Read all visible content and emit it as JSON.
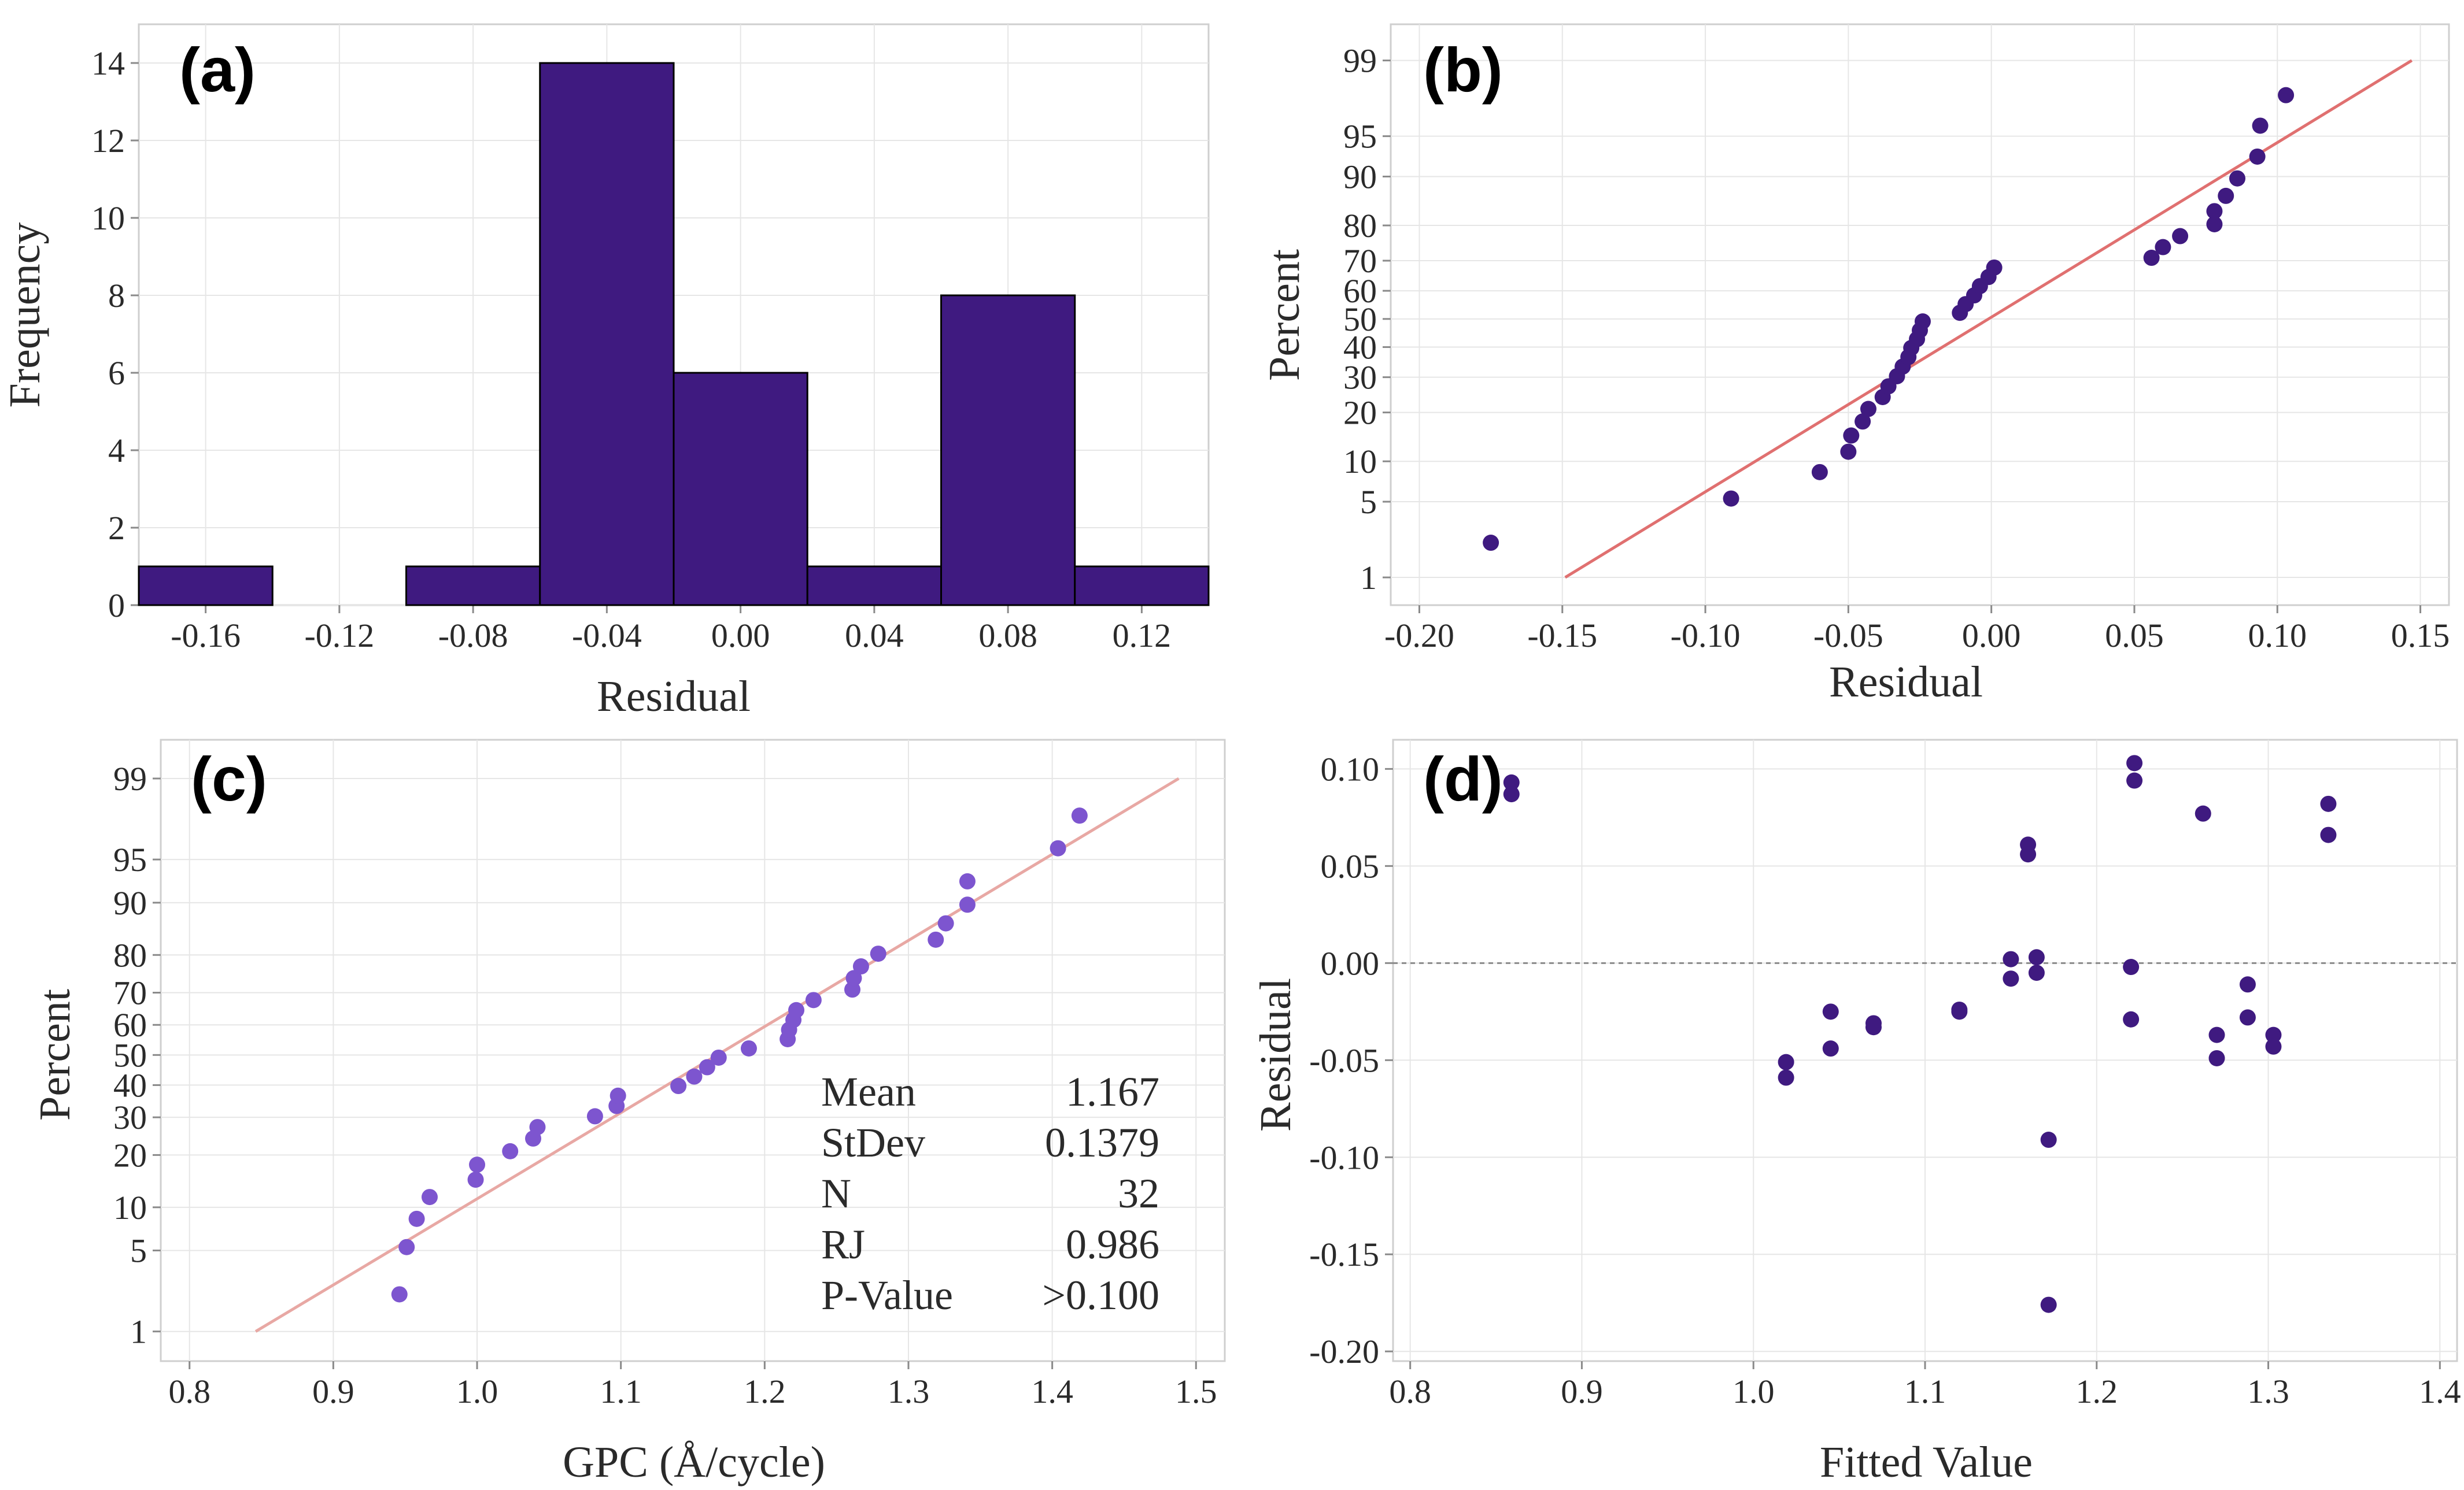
{
  "chart_data": [
    {
      "id": "a",
      "type": "bar",
      "panel_label": "(a)",
      "xlabel": "Residual",
      "ylabel": "Frequency",
      "bin_edges": [
        -0.18,
        -0.14,
        -0.1,
        -0.06,
        -0.02,
        0.02,
        0.06,
        0.1,
        0.14
      ],
      "values": [
        1,
        0,
        1,
        14,
        6,
        1,
        8,
        1
      ],
      "xticks": [
        -0.16,
        -0.12,
        -0.08,
        -0.04,
        0.0,
        0.04,
        0.08,
        0.12
      ],
      "xtick_labels": [
        "-0.16",
        "-0.12",
        "-0.08",
        "-0.04",
        "0.00",
        "0.04",
        "0.08",
        "0.12"
      ],
      "xlim": [
        -0.18,
        0.14
      ],
      "yticks": [
        0,
        2,
        4,
        6,
        8,
        10,
        12,
        14
      ],
      "ytick_labels": [
        "0",
        "2",
        "4",
        "6",
        "8",
        "10",
        "12",
        "14"
      ],
      "ylim": [
        0,
        15
      ],
      "bar_color": "#3f1a80",
      "grid": true
    },
    {
      "id": "b",
      "type": "scatter",
      "scale_y": "normal-probability",
      "panel_label": "(b)",
      "xlabel": "Residual",
      "ylabel": "Percent",
      "x": [
        -0.175,
        -0.091,
        -0.06,
        -0.05,
        -0.049,
        -0.045,
        -0.043,
        -0.038,
        -0.036,
        -0.033,
        -0.031,
        -0.029,
        -0.028,
        -0.026,
        -0.025,
        -0.024,
        -0.011,
        -0.009,
        -0.006,
        -0.004,
        -0.001,
        0.001,
        0.056,
        0.06,
        0.066,
        0.078,
        0.078,
        0.082,
        0.086,
        0.093,
        0.094,
        0.103
      ],
      "y": [
        2.2,
        5.3,
        8.4,
        11.6,
        14.7,
        17.8,
        20.9,
        24.1,
        27.2,
        30.3,
        33.4,
        36.6,
        39.7,
        42.8,
        45.9,
        49.1,
        52.2,
        55.3,
        58.4,
        61.6,
        64.7,
        67.8,
        70.9,
        74.1,
        77.2,
        80.3,
        83.4,
        86.6,
        89.7,
        92.8,
        95.9,
        97.8
      ],
      "fit_line": {
        "x": [
          -0.149,
          0.147
        ],
        "y": [
          1,
          99
        ]
      },
      "xticks": [
        -0.2,
        -0.15,
        -0.1,
        -0.05,
        0.0,
        0.05,
        0.1,
        0.15
      ],
      "xtick_labels": [
        "-0.20",
        "-0.15",
        "-0.10",
        "-0.05",
        "0.00",
        "0.05",
        "0.10",
        "0.15"
      ],
      "xlim": [
        -0.21,
        0.16
      ],
      "yticks": [
        1,
        5,
        10,
        20,
        30,
        40,
        50,
        60,
        70,
        80,
        90,
        95,
        99
      ],
      "ytick_labels": [
        "1",
        "5",
        "10",
        "20",
        "30",
        "40",
        "50",
        "60",
        "70",
        "80",
        "90",
        "95",
        "99"
      ],
      "ylim": [
        1,
        99
      ],
      "point_color": "#3f1a80",
      "line_color": "#e07070",
      "grid": true
    },
    {
      "id": "c",
      "type": "scatter",
      "scale_y": "normal-probability",
      "panel_label": "(c)",
      "xlabel": "GPC (Å/cycle)",
      "ylabel": "Percent",
      "x": [
        0.946,
        0.951,
        0.958,
        0.967,
        0.999,
        1.0,
        1.023,
        1.039,
        1.042,
        1.082,
        1.097,
        1.098,
        1.14,
        1.151,
        1.16,
        1.168,
        1.189,
        1.216,
        1.217,
        1.22,
        1.222,
        1.234,
        1.261,
        1.262,
        1.267,
        1.279,
        1.319,
        1.326,
        1.341,
        1.341,
        1.404,
        1.419
      ],
      "y": [
        2.2,
        5.3,
        8.4,
        11.6,
        14.7,
        17.8,
        20.9,
        24.1,
        27.2,
        30.3,
        33.4,
        36.6,
        39.7,
        42.8,
        45.9,
        49.1,
        52.2,
        55.3,
        58.4,
        61.6,
        64.7,
        67.8,
        70.9,
        74.1,
        77.2,
        80.3,
        83.4,
        86.6,
        89.7,
        92.8,
        95.9,
        97.8
      ],
      "fit_line": {
        "x": [
          0.846,
          1.488
        ],
        "y": [
          1,
          99
        ]
      },
      "xticks": [
        0.8,
        0.9,
        1.0,
        1.1,
        1.2,
        1.3,
        1.4,
        1.5
      ],
      "xtick_labels": [
        "0.8",
        "0.9",
        "1.0",
        "1.1",
        "1.2",
        "1.3",
        "1.4",
        "1.5"
      ],
      "xlim": [
        0.78,
        1.52
      ],
      "yticks": [
        1,
        5,
        10,
        20,
        30,
        40,
        50,
        60,
        70,
        80,
        90,
        95,
        99
      ],
      "ytick_labels": [
        "1",
        "5",
        "10",
        "20",
        "30",
        "40",
        "50",
        "60",
        "70",
        "80",
        "90",
        "95",
        "99"
      ],
      "ylim": [
        1,
        99
      ],
      "point_color": "#7d55cf",
      "line_color": "#e8a8a4",
      "grid": true,
      "stats": [
        {
          "label": "Mean",
          "value": "1.167"
        },
        {
          "label": "StDev",
          "value": "0.1379"
        },
        {
          "label": "N",
          "value": "32"
        },
        {
          "label": "RJ",
          "value": "0.986"
        },
        {
          "label": "P-Value",
          "value": ">0.100"
        }
      ]
    },
    {
      "id": "d",
      "type": "scatter",
      "panel_label": "(d)",
      "xlabel": "Fitted Value",
      "ylabel": "Residual",
      "x": [
        0.859,
        0.859,
        1.019,
        1.019,
        1.045,
        1.045,
        1.07,
        1.07,
        1.12,
        1.12,
        1.15,
        1.15,
        1.16,
        1.16,
        1.165,
        1.165,
        1.172,
        1.172,
        1.22,
        1.22,
        1.222,
        1.222,
        1.262,
        1.27,
        1.27,
        1.288,
        1.288,
        1.303,
        1.303,
        1.335,
        1.335
      ],
      "y": [
        0.093,
        0.087,
        -0.051,
        -0.059,
        -0.025,
        -0.044,
        -0.031,
        -0.033,
        -0.024,
        -0.025,
        0.002,
        -0.008,
        0.061,
        0.056,
        0.003,
        -0.005,
        -0.091,
        -0.176,
        -0.002,
        -0.029,
        0.103,
        0.094,
        0.077,
        -0.037,
        -0.049,
        -0.011,
        -0.028,
        -0.037,
        -0.043,
        0.082,
        0.066
      ],
      "zero_line": 0,
      "xticks": [
        0.8,
        0.9,
        1.0,
        1.1,
        1.2,
        1.3,
        1.4
      ],
      "xtick_labels": [
        "0.8",
        "0.9",
        "1.0",
        "1.1",
        "1.2",
        "1.3",
        "1.4"
      ],
      "xlim": [
        0.79,
        1.41
      ],
      "yticks": [
        -0.2,
        -0.15,
        -0.1,
        -0.05,
        0.0,
        0.05,
        0.1
      ],
      "ytick_labels": [
        "-0.20",
        "-0.15",
        "-0.10",
        "-0.05",
        "0.00",
        "0.05",
        "0.10"
      ],
      "ylim": [
        -0.205,
        0.115
      ],
      "point_color": "#3f1a80",
      "grid": true
    }
  ]
}
